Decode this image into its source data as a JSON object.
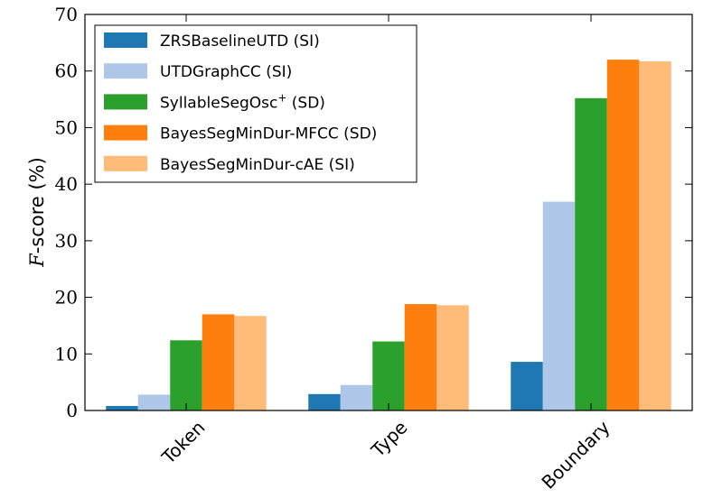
{
  "chart_data": {
    "type": "bar",
    "categories": [
      "Token",
      "Type",
      "Boundary"
    ],
    "series": [
      {
        "name": "ZRSBaselineUTD (SI)",
        "color": "#1f77b4",
        "values": [
          0.8,
          2.9,
          8.6
        ]
      },
      {
        "name": "UTDGraphCC (SI)",
        "color": "#aec7e8",
        "values": [
          2.8,
          4.5,
          36.9
        ]
      },
      {
        "name": "SyllableSegOsc",
        "name_sup": "+",
        "name_suffix": " (SD)",
        "color": "#2ca02c",
        "values": [
          12.4,
          12.2,
          55.2
        ]
      },
      {
        "name": "BayesSegMinDur-MFCC (SD)",
        "color": "#ff7f0e",
        "values": [
          17.0,
          18.8,
          62.0
        ]
      },
      {
        "name": "BayesSegMinDur-cAE (SI)",
        "color": "#ffbb78",
        "values": [
          16.7,
          18.6,
          61.7
        ]
      }
    ],
    "ylabel_italic": "F",
    "ylabel_rest": "-score (%)",
    "ylim": [
      0,
      70
    ],
    "yticks": [
      0,
      10,
      20,
      30,
      40,
      50,
      60,
      70
    ],
    "legend_position": "top-left",
    "grid": false
  }
}
